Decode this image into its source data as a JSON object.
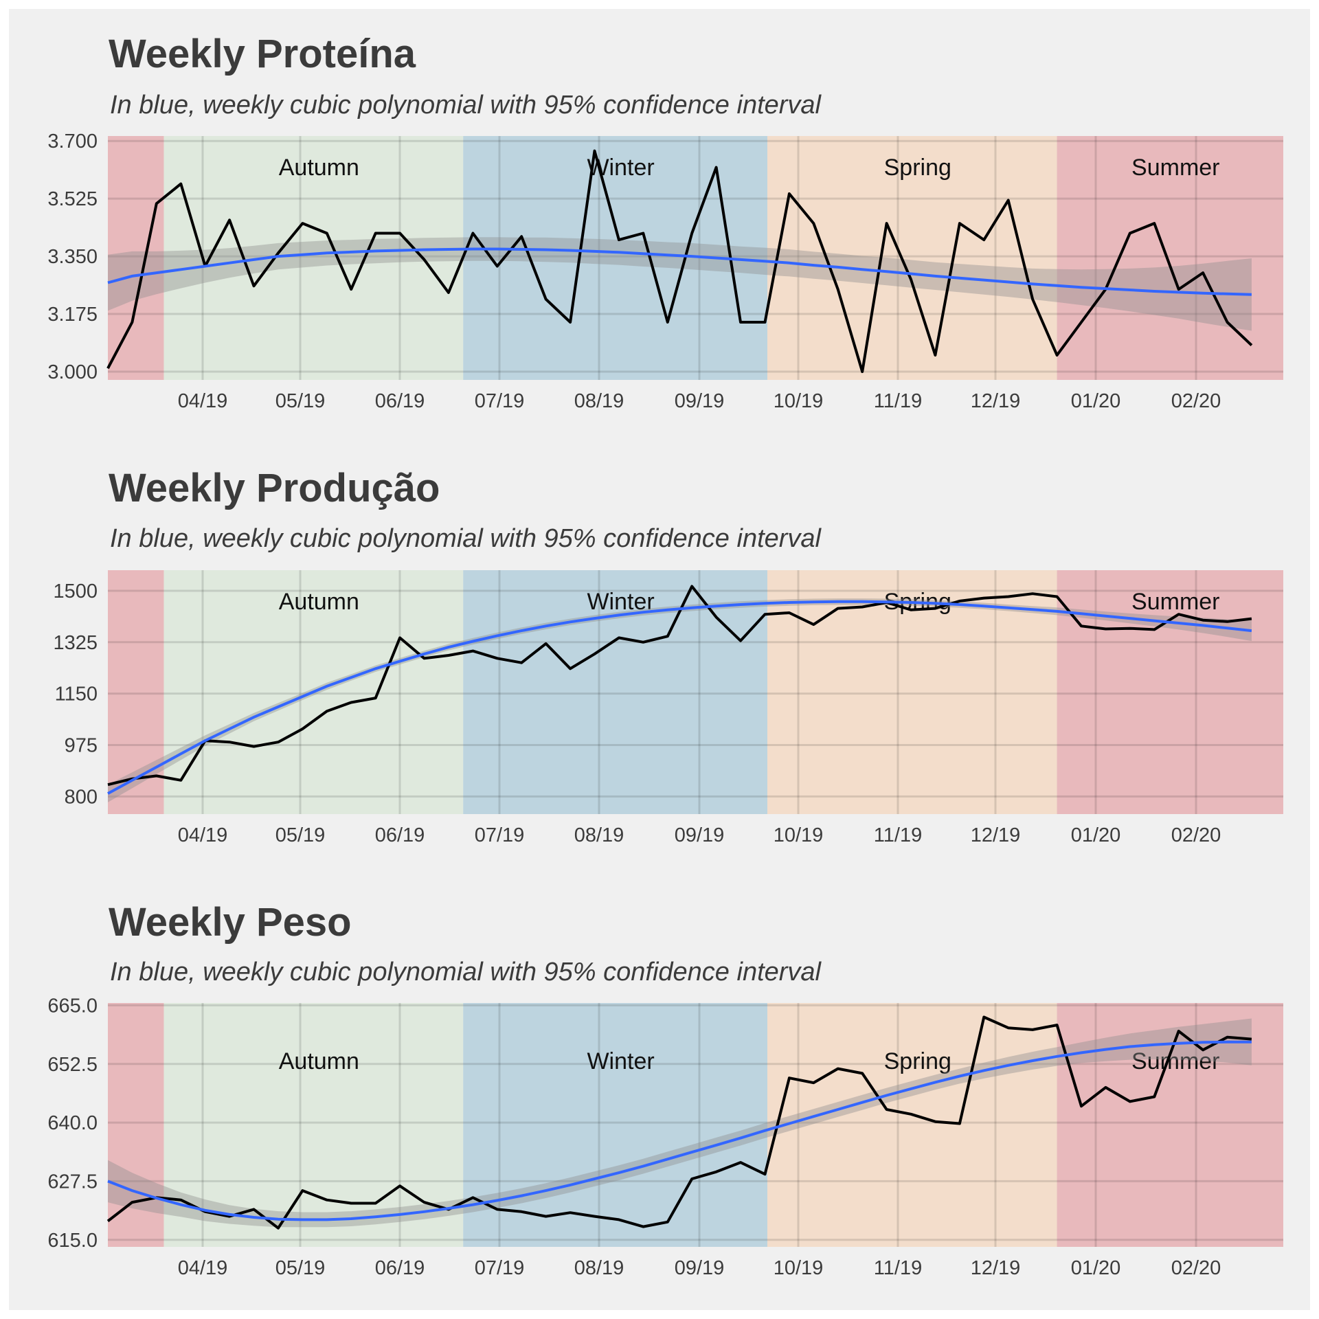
{
  "chart_data": [
    {
      "type": "line",
      "title": "Weekly Proteína",
      "subtitle": "In blue, weekly cubic polynomial with 95% confidence interval",
      "x_tick_labels": [
        "04/19",
        "05/19",
        "06/19",
        "07/19",
        "08/19",
        "09/19",
        "10/19",
        "11/19",
        "12/19",
        "01/20",
        "02/20"
      ],
      "y_ticks": [
        3.0,
        3.175,
        3.35,
        3.525,
        3.7
      ],
      "y_tick_labels": [
        "3.000",
        "3.175",
        "3.350",
        "3.525",
        "3.700"
      ],
      "ylim": [
        2.975,
        3.715
      ],
      "seasons": [
        {
          "label": "",
          "start": 0,
          "end": 2.3,
          "color": "#e8b9bc"
        },
        {
          "label": "Autumn",
          "start": 2.3,
          "end": 14.6,
          "color": "#dfe9dd"
        },
        {
          "label": "Winter",
          "start": 14.6,
          "end": 27.1,
          "color": "#bdd4df"
        },
        {
          "label": "Spring",
          "start": 27.1,
          "end": 39.0,
          "color": "#f3ddcb"
        },
        {
          "label": "Summer",
          "start": 39.0,
          "end": 48.3,
          "color": "#e8b9bc"
        }
      ],
      "series": [
        {
          "values": [
            3.01,
            3.15,
            3.51,
            3.57,
            3.32,
            3.46,
            3.26,
            3.36,
            3.45,
            3.42,
            3.25,
            3.42,
            3.42,
            3.34,
            3.24,
            3.42,
            3.32,
            3.41,
            3.22,
            3.15,
            3.67,
            3.4,
            3.42,
            3.15,
            3.42,
            3.62,
            3.15,
            3.15,
            3.54,
            3.45,
            3.25,
            3.0,
            3.45,
            3.28,
            3.05,
            3.45,
            3.4,
            3.52,
            3.22,
            3.05,
            3.15,
            3.25,
            3.42,
            3.45,
            3.25,
            3.3,
            3.15,
            3.08
          ]
        },
        {
          "values": [
            3.27,
            3.29,
            3.3,
            3.31,
            3.32,
            3.33,
            3.34,
            3.35,
            3.355,
            3.36,
            3.363,
            3.366,
            3.368,
            3.37,
            3.371,
            3.372,
            3.372,
            3.371,
            3.37,
            3.368,
            3.365,
            3.362,
            3.358,
            3.354,
            3.35,
            3.345,
            3.34,
            3.335,
            3.33,
            3.323,
            3.317,
            3.31,
            3.304,
            3.297,
            3.29,
            3.284,
            3.278,
            3.272,
            3.266,
            3.261,
            3.256,
            3.252,
            3.248,
            3.244,
            3.241,
            3.238,
            3.236,
            3.234
          ]
        },
        {
          "values": [
            0.085,
            0.075,
            0.065,
            0.057,
            0.05,
            0.045,
            0.042,
            0.04,
            0.039,
            0.038,
            0.037,
            0.037,
            0.036,
            0.036,
            0.036,
            0.036,
            0.036,
            0.036,
            0.037,
            0.037,
            0.038,
            0.038,
            0.039,
            0.039,
            0.04,
            0.04,
            0.04,
            0.041,
            0.041,
            0.041,
            0.041,
            0.041,
            0.042,
            0.042,
            0.042,
            0.043,
            0.044,
            0.045,
            0.047,
            0.05,
            0.054,
            0.059,
            0.065,
            0.072,
            0.08,
            0.09,
            0.1,
            0.11
          ]
        }
      ]
    },
    {
      "type": "line",
      "title": "Weekly Produção",
      "subtitle": "In blue, weekly cubic polynomial with 95% confidence interval",
      "x_tick_labels": [
        "04/19",
        "05/19",
        "06/19",
        "07/19",
        "08/19",
        "09/19",
        "10/19",
        "11/19",
        "12/19",
        "01/20",
        "02/20"
      ],
      "y_ticks": [
        800,
        975,
        1150,
        1325,
        1500
      ],
      "y_tick_labels": [
        "800",
        "975",
        "1150",
        "1325",
        "1500"
      ],
      "ylim": [
        740,
        1570
      ],
      "seasons": [
        {
          "label": "",
          "start": 0,
          "end": 2.3,
          "color": "#e8b9bc"
        },
        {
          "label": "Autumn",
          "start": 2.3,
          "end": 14.6,
          "color": "#dfe9dd"
        },
        {
          "label": "Winter",
          "start": 14.6,
          "end": 27.1,
          "color": "#bdd4df"
        },
        {
          "label": "Spring",
          "start": 27.1,
          "end": 39.0,
          "color": "#f3ddcb"
        },
        {
          "label": "Summer",
          "start": 39.0,
          "end": 48.3,
          "color": "#e8b9bc"
        }
      ],
      "series": [
        {
          "values": [
            840,
            860,
            870,
            855,
            990,
            985,
            970,
            985,
            1030,
            1090,
            1120,
            1135,
            1340,
            1270,
            1280,
            1295,
            1270,
            1255,
            1320,
            1235,
            1285,
            1340,
            1325,
            1345,
            1515,
            1410,
            1330,
            1420,
            1425,
            1385,
            1440,
            1445,
            1460,
            1435,
            1440,
            1465,
            1475,
            1480,
            1490,
            1480,
            1380,
            1370,
            1372,
            1368,
            1420,
            1400,
            1395,
            1405
          ]
        },
        {
          "values": [
            810,
            855,
            900,
            945,
            990,
            1030,
            1070,
            1105,
            1140,
            1175,
            1205,
            1235,
            1260,
            1285,
            1308,
            1328,
            1347,
            1364,
            1380,
            1394,
            1406,
            1417,
            1427,
            1435,
            1442,
            1448,
            1453,
            1457,
            1460,
            1462,
            1463,
            1463,
            1462,
            1460,
            1457,
            1453,
            1448,
            1442,
            1436,
            1430,
            1422,
            1414,
            1406,
            1398,
            1390,
            1382,
            1373,
            1364
          ]
        },
        {
          "values": [
            30,
            27,
            24,
            21,
            18,
            16,
            14,
            13,
            12,
            12,
            11,
            11,
            11,
            11,
            11,
            11,
            11,
            11,
            11,
            11,
            11,
            11,
            11,
            11,
            11,
            11,
            11,
            11,
            11,
            11,
            11,
            11,
            11,
            11,
            11,
            11,
            11,
            11,
            12,
            13,
            14,
            15,
            17,
            19,
            22,
            26,
            30,
            35
          ]
        }
      ]
    },
    {
      "type": "line",
      "title": "Weekly Peso",
      "subtitle": "In blue, weekly cubic polynomial with 95% confidence interval",
      "x_tick_labels": [
        "04/19",
        "05/19",
        "06/19",
        "07/19",
        "08/19",
        "09/19",
        "10/19",
        "11/19",
        "12/19",
        "01/20",
        "02/20"
      ],
      "y_ticks": [
        615.0,
        627.5,
        640.0,
        652.5,
        665.0
      ],
      "y_tick_labels": [
        "615.0",
        "627.5",
        "640.0",
        "652.5",
        "665.0"
      ],
      "ylim": [
        613.5,
        665.5
      ],
      "seasons": [
        {
          "label": "",
          "start": 0,
          "end": 2.3,
          "color": "#e8b9bc"
        },
        {
          "label": "Autumn",
          "start": 2.3,
          "end": 14.6,
          "color": "#dfe9dd"
        },
        {
          "label": "Winter",
          "start": 14.6,
          "end": 27.1,
          "color": "#bdd4df"
        },
        {
          "label": "Spring",
          "start": 27.1,
          "end": 39.0,
          "color": "#f3ddcb"
        },
        {
          "label": "Summer",
          "start": 39.0,
          "end": 48.3,
          "color": "#e8b9bc"
        }
      ],
      "series": [
        {
          "values": [
            619,
            623,
            624,
            623.5,
            621,
            620,
            621.5,
            617.5,
            625.5,
            623.5,
            622.8,
            622.8,
            626.5,
            623,
            621.5,
            624,
            621.5,
            621,
            620,
            620.8,
            620,
            619.3,
            617.8,
            618.8,
            628,
            629.5,
            631.5,
            629,
            649.5,
            648.5,
            651.5,
            650.5,
            642.8,
            641.8,
            640.2,
            639.8,
            662.5,
            660.2,
            659.8,
            660.8,
            643.5,
            647.5,
            644.5,
            645.5,
            659.5,
            655.5,
            658.2,
            657.8
          ]
        },
        {
          "values": [
            627.5,
            625.5,
            623.9,
            622.5,
            621.3,
            620.4,
            619.8,
            619.4,
            619.3,
            619.3,
            619.5,
            619.9,
            620.4,
            621,
            621.7,
            622.5,
            623.4,
            624.4,
            625.5,
            626.7,
            628,
            629.3,
            630.7,
            632.2,
            633.7,
            635.2,
            636.7,
            638.3,
            639.8,
            641.3,
            642.8,
            644.3,
            645.8,
            647.2,
            648.6,
            649.9,
            651.1,
            652.2,
            653.2,
            654.1,
            654.9,
            655.6,
            656.2,
            656.6,
            656.9,
            657.1,
            657.2,
            657.2
          ]
        },
        {
          "values": [
            4.5,
            3.8,
            3.2,
            2.6,
            2.3,
            2,
            1.8,
            1.7,
            1.6,
            1.6,
            1.6,
            1.6,
            1.6,
            1.6,
            1.6,
            1.6,
            1.6,
            1.6,
            1.6,
            1.6,
            1.6,
            1.6,
            1.6,
            1.6,
            1.6,
            1.6,
            1.6,
            1.6,
            1.6,
            1.6,
            1.6,
            1.6,
            1.6,
            1.6,
            1.6,
            1.6,
            1.7,
            1.8,
            1.9,
            2,
            2.2,
            2.5,
            2.8,
            3.1,
            3.5,
            3.9,
            4.4,
            5
          ]
        }
      ]
    }
  ]
}
